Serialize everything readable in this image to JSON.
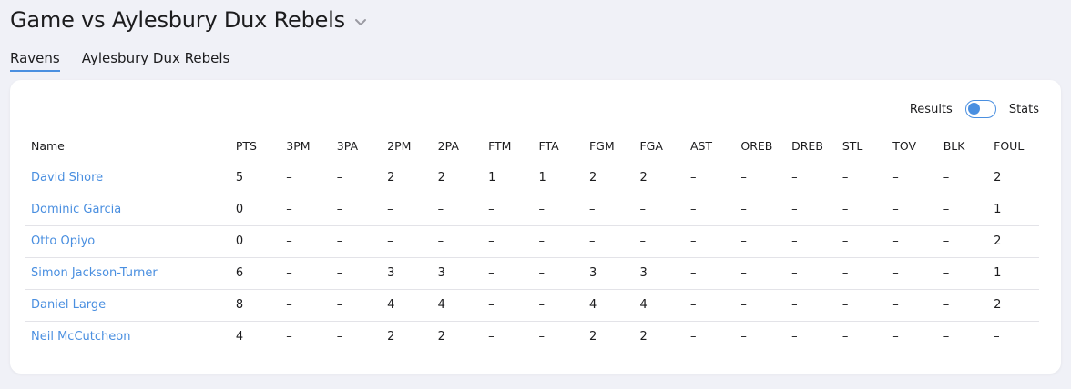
{
  "header": {
    "title": "Game vs Aylesbury Dux Rebels"
  },
  "tabs": [
    {
      "label": "Ravens",
      "active": true
    },
    {
      "label": "Aylesbury Dux Rebels",
      "active": false
    }
  ],
  "toggle": {
    "left_label": "Results",
    "right_label": "Stats"
  },
  "table": {
    "columns": [
      "Name",
      "PTS",
      "3PM",
      "3PA",
      "2PM",
      "2PA",
      "FTM",
      "FTA",
      "FGM",
      "FGA",
      "AST",
      "OREB",
      "DREB",
      "STL",
      "TOV",
      "BLK",
      "FOUL"
    ],
    "rows": [
      [
        "David Shore",
        "5",
        "–",
        "–",
        "2",
        "2",
        "1",
        "1",
        "2",
        "2",
        "–",
        "–",
        "–",
        "–",
        "–",
        "–",
        "2"
      ],
      [
        "Dominic Garcia",
        "0",
        "–",
        "–",
        "–",
        "–",
        "–",
        "–",
        "–",
        "–",
        "–",
        "–",
        "–",
        "–",
        "–",
        "–",
        "1"
      ],
      [
        "Otto Opiyo",
        "0",
        "–",
        "–",
        "–",
        "–",
        "–",
        "–",
        "–",
        "–",
        "–",
        "–",
        "–",
        "–",
        "–",
        "–",
        "2"
      ],
      [
        "Simon Jackson-Turner",
        "6",
        "–",
        "–",
        "3",
        "3",
        "–",
        "–",
        "3",
        "3",
        "–",
        "–",
        "–",
        "–",
        "–",
        "–",
        "1"
      ],
      [
        "Daniel Large",
        "8",
        "–",
        "–",
        "4",
        "4",
        "–",
        "–",
        "4",
        "4",
        "–",
        "–",
        "–",
        "–",
        "–",
        "–",
        "2"
      ],
      [
        "Neil McCutcheon",
        "4",
        "–",
        "–",
        "2",
        "2",
        "–",
        "–",
        "2",
        "2",
        "–",
        "–",
        "–",
        "–",
        "–",
        "–",
        "–"
      ]
    ]
  },
  "colors": {
    "accent": "#4a8fe0",
    "background": "#f0f1f7"
  }
}
